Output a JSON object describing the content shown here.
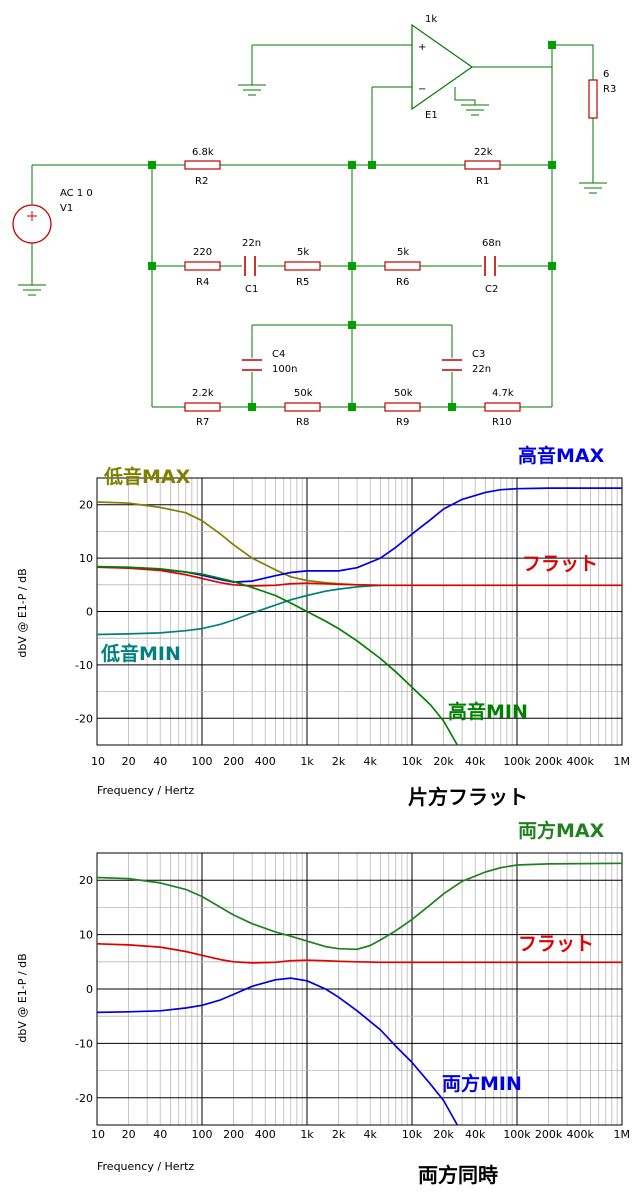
{
  "circuit": {
    "opamp": {
      "name": "E1",
      "gain": "1k"
    },
    "source": {
      "name": "V1",
      "spec": "AC 1 0"
    },
    "components": [
      {
        "ref": "R2",
        "value": "6.8k"
      },
      {
        "ref": "R1",
        "value": "22k"
      },
      {
        "ref": "R3",
        "value": "6"
      },
      {
        "ref": "R4",
        "value": "220"
      },
      {
        "ref": "C1",
        "value": "22n"
      },
      {
        "ref": "R5",
        "value": "5k"
      },
      {
        "ref": "R6",
        "value": "5k"
      },
      {
        "ref": "C2",
        "value": "68n"
      },
      {
        "ref": "C4",
        "value": "100n"
      },
      {
        "ref": "C3",
        "value": "22n"
      },
      {
        "ref": "R7",
        "value": "2.2k"
      },
      {
        "ref": "R8",
        "value": "50k"
      },
      {
        "ref": "R9",
        "value": "50k"
      },
      {
        "ref": "R10",
        "value": "4.7k"
      }
    ]
  },
  "colors": {
    "wire": "#007a00",
    "component": "#c00000",
    "node": "#00a000",
    "olive": "#808000",
    "teal": "#008080",
    "red": "#e00000",
    "blue": "#0000e0",
    "green": "#008000",
    "dkgreen": "#208020"
  },
  "chart_data": [
    {
      "type": "line",
      "caption": "片方フラット",
      "xlabel": "Frequency / Hertz",
      "ylabel": "dbV @ E1-P / dB",
      "x_scale": "log",
      "xlim": [
        10,
        1000000
      ],
      "ylim": [
        -25,
        25
      ],
      "yticks": [
        20,
        10,
        0,
        -10,
        -20
      ],
      "xticks": [
        "10",
        "20",
        "40",
        "100",
        "200",
        "400",
        "1k",
        "2k",
        "4k",
        "10k",
        "20k",
        "40k",
        "100k",
        "200k",
        "400k",
        "1M"
      ],
      "grid": true,
      "series": [
        {
          "name": "低音MAX",
          "color": "#808000",
          "points": [
            [
              10,
              20.5
            ],
            [
              20,
              20.3
            ],
            [
              40,
              19.5
            ],
            [
              70,
              18.5
            ],
            [
              100,
              17
            ],
            [
              150,
              14.5
            ],
            [
              200,
              12.5
            ],
            [
              300,
              10
            ],
            [
              500,
              7.8
            ],
            [
              700,
              6.5
            ],
            [
              1000,
              5.8
            ],
            [
              1500,
              5.4
            ],
            [
              2000,
              5.2
            ],
            [
              3000,
              5.0
            ],
            [
              4000,
              4.95
            ],
            [
              5000,
              4.9
            ]
          ]
        },
        {
          "name": "低音MIN",
          "color": "#008080",
          "points": [
            [
              10,
              -4.3
            ],
            [
              20,
              -4.2
            ],
            [
              40,
              -4.0
            ],
            [
              70,
              -3.6
            ],
            [
              100,
              -3.2
            ],
            [
              150,
              -2.4
            ],
            [
              200,
              -1.6
            ],
            [
              300,
              -0.3
            ],
            [
              500,
              1.2
            ],
            [
              700,
              2.2
            ],
            [
              1000,
              3.0
            ],
            [
              1500,
              3.8
            ],
            [
              2000,
              4.2
            ],
            [
              3000,
              4.6
            ],
            [
              4000,
              4.8
            ],
            [
              5000,
              4.9
            ]
          ]
        },
        {
          "name": "高音MAX",
          "color": "#0000e0",
          "points": [
            [
              10,
              8.3
            ],
            [
              20,
              8.2
            ],
            [
              40,
              7.9
            ],
            [
              70,
              7.4
            ],
            [
              100,
              6.8
            ],
            [
              150,
              6.0
            ],
            [
              200,
              5.5
            ],
            [
              300,
              5.7
            ],
            [
              500,
              6.7
            ],
            [
              700,
              7.3
            ],
            [
              1000,
              7.6
            ],
            [
              2000,
              7.6
            ],
            [
              3000,
              8.2
            ],
            [
              5000,
              10
            ],
            [
              7000,
              12
            ],
            [
              10000,
              14.5
            ],
            [
              15000,
              17.2
            ],
            [
              20000,
              19.2
            ],
            [
              30000,
              21.0
            ],
            [
              50000,
              22.3
            ],
            [
              70000,
              22.8
            ],
            [
              100000,
              23.0
            ],
            [
              200000,
              23.1
            ],
            [
              1000000,
              23.1
            ]
          ]
        },
        {
          "name": "フラット",
          "color": "#e00000",
          "points": [
            [
              10,
              8.3
            ],
            [
              20,
              8.1
            ],
            [
              40,
              7.7
            ],
            [
              70,
              6.9
            ],
            [
              100,
              6.2
            ],
            [
              150,
              5.4
            ],
            [
              200,
              5.0
            ],
            [
              300,
              4.8
            ],
            [
              500,
              4.9
            ],
            [
              700,
              5.2
            ],
            [
              1000,
              5.3
            ],
            [
              1500,
              5.2
            ],
            [
              2000,
              5.1
            ],
            [
              3000,
              5.0
            ],
            [
              5000,
              4.9
            ],
            [
              10000,
              4.9
            ],
            [
              100000,
              4.9
            ],
            [
              1000000,
              4.9
            ]
          ]
        },
        {
          "name": "高音MIN",
          "color": "#008000",
          "points": [
            [
              10,
              8.4
            ],
            [
              20,
              8.3
            ],
            [
              40,
              8.0
            ],
            [
              70,
              7.4
            ],
            [
              100,
              7.0
            ],
            [
              150,
              6.2
            ],
            [
              200,
              5.6
            ],
            [
              300,
              4.5
            ],
            [
              500,
              3.0
            ],
            [
              700,
              1.6
            ],
            [
              1000,
              0
            ],
            [
              1500,
              -1.8
            ],
            [
              2000,
              -3.2
            ],
            [
              3000,
              -5.5
            ],
            [
              5000,
              -8.8
            ],
            [
              7000,
              -11.3
            ],
            [
              10000,
              -14.2
            ],
            [
              15000,
              -17.5
            ],
            [
              20000,
              -20.5
            ],
            [
              27000,
              -25
            ]
          ]
        }
      ]
    },
    {
      "type": "line",
      "caption": "両方同時",
      "xlabel": "Frequency / Hertz",
      "ylabel": "dbV @ E1-P / dB",
      "x_scale": "log",
      "xlim": [
        10,
        1000000
      ],
      "ylim": [
        -25,
        25
      ],
      "yticks": [
        20,
        10,
        0,
        -10,
        -20
      ],
      "xticks": [
        "10",
        "20",
        "40",
        "100",
        "200",
        "400",
        "1k",
        "2k",
        "4k",
        "10k",
        "20k",
        "40k",
        "100k",
        "200k",
        "400k",
        "1M"
      ],
      "grid": true,
      "series": [
        {
          "name": "両方MAX",
          "color": "#208020",
          "points": [
            [
              10,
              20.5
            ],
            [
              20,
              20.3
            ],
            [
              40,
              19.5
            ],
            [
              70,
              18.3
            ],
            [
              100,
              17.0
            ],
            [
              150,
              15.0
            ],
            [
              200,
              13.6
            ],
            [
              300,
              12.0
            ],
            [
              500,
              10.5
            ],
            [
              700,
              9.7
            ],
            [
              1000,
              8.8
            ],
            [
              1500,
              7.8
            ],
            [
              2000,
              7.4
            ],
            [
              3000,
              7.3
            ],
            [
              4000,
              8.0
            ],
            [
              5000,
              9.0
            ],
            [
              7000,
              10.7
            ],
            [
              10000,
              12.8
            ],
            [
              15000,
              15.5
            ],
            [
              20000,
              17.5
            ],
            [
              30000,
              19.8
            ],
            [
              50000,
              21.5
            ],
            [
              70000,
              22.3
            ],
            [
              100000,
              22.8
            ],
            [
              200000,
              23.0
            ],
            [
              1000000,
              23.1
            ]
          ]
        },
        {
          "name": "フラット",
          "color": "#e00000",
          "points": [
            [
              10,
              8.3
            ],
            [
              20,
              8.1
            ],
            [
              40,
              7.7
            ],
            [
              70,
              6.9
            ],
            [
              100,
              6.2
            ],
            [
              150,
              5.4
            ],
            [
              200,
              5.0
            ],
            [
              300,
              4.8
            ],
            [
              500,
              4.9
            ],
            [
              700,
              5.2
            ],
            [
              1000,
              5.3
            ],
            [
              1500,
              5.2
            ],
            [
              2000,
              5.1
            ],
            [
              3000,
              5.0
            ],
            [
              5000,
              4.9
            ],
            [
              10000,
              4.9
            ],
            [
              100000,
              4.9
            ],
            [
              1000000,
              4.9
            ]
          ]
        },
        {
          "name": "両方MIN",
          "color": "#0000e0",
          "points": [
            [
              10,
              -4.3
            ],
            [
              20,
              -4.2
            ],
            [
              40,
              -4.0
            ],
            [
              70,
              -3.5
            ],
            [
              100,
              -3.0
            ],
            [
              150,
              -2.0
            ],
            [
              200,
              -1.0
            ],
            [
              300,
              0.5
            ],
            [
              500,
              1.7
            ],
            [
              700,
              2.0
            ],
            [
              1000,
              1.5
            ],
            [
              1500,
              0
            ],
            [
              2000,
              -1.5
            ],
            [
              3000,
              -4.0
            ],
            [
              5000,
              -7.5
            ],
            [
              7000,
              -10.5
            ],
            [
              10000,
              -13.5
            ],
            [
              15000,
              -17.5
            ],
            [
              20000,
              -20.5
            ],
            [
              27000,
              -25
            ]
          ]
        }
      ]
    }
  ]
}
